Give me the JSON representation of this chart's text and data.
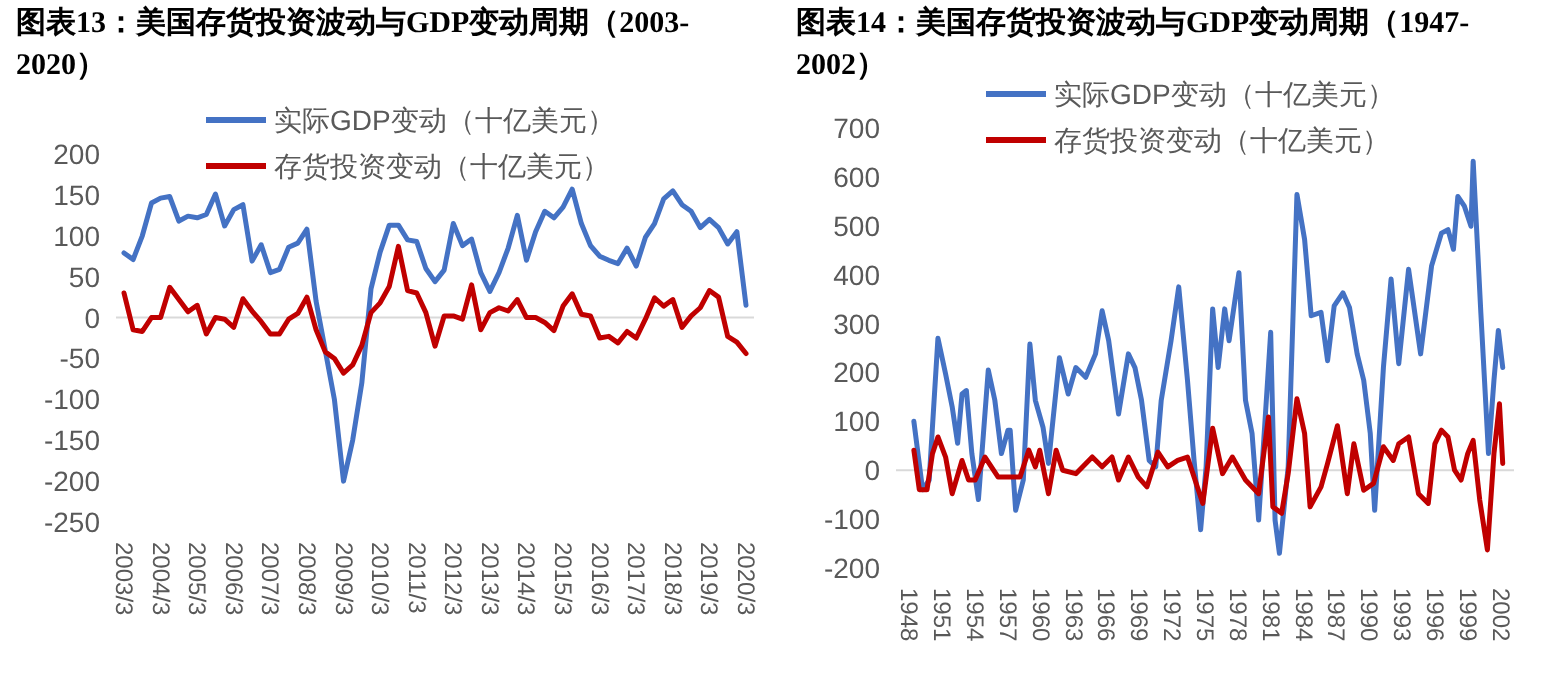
{
  "chart_data": [
    {
      "type": "line",
      "title": "图表13：美国存货投资波动与GDP变动周期（2003-2020）",
      "legend": "top",
      "ylim": [
        -250,
        200
      ],
      "yticks": [
        -250,
        -200,
        -150,
        -100,
        -50,
        0,
        50,
        100,
        150,
        200
      ],
      "categories": [
        "2003/3",
        null,
        null,
        null,
        "2004/3",
        null,
        null,
        null,
        "2005/3",
        null,
        null,
        null,
        "2006/3",
        null,
        null,
        null,
        "2007/3",
        null,
        null,
        null,
        "2008/3",
        null,
        null,
        null,
        "2009/3",
        null,
        null,
        null,
        "2010/3",
        null,
        null,
        null,
        "2011/3",
        null,
        null,
        null,
        "2012/3",
        null,
        null,
        null,
        "2013/3",
        null,
        null,
        null,
        "2014/3",
        null,
        null,
        null,
        "2015/3",
        null,
        null,
        null,
        "2016/3",
        null,
        null,
        null,
        "2017/3",
        null,
        null,
        null,
        "2018/3",
        null,
        null,
        null,
        "2019/3",
        null,
        null,
        null,
        "2020/3"
      ],
      "series": [
        {
          "name": "实际GDP变动（十亿美元）",
          "color": "#4472c4",
          "values": [
            79,
            71,
            100,
            140,
            146,
            148,
            118,
            124,
            122,
            126,
            151,
            112,
            132,
            138,
            69,
            89,
            55,
            59,
            86,
            91,
            108,
            20,
            -40,
            -100,
            -200,
            -150,
            -80,
            35,
            80,
            113,
            113,
            95,
            93,
            60,
            44,
            58,
            115,
            88,
            96,
            55,
            32,
            55,
            85,
            125,
            70,
            105,
            130,
            122,
            135,
            157,
            115,
            88,
            75,
            70,
            66,
            85,
            63,
            98,
            115,
            145,
            155,
            138,
            130,
            110,
            120,
            110,
            90,
            105,
            15
          ]
        },
        {
          "name": "存货投资变动（十亿美元）",
          "color": "#c00000",
          "values": [
            30,
            -15,
            -17,
            0,
            0,
            37,
            22,
            7,
            15,
            -20,
            0,
            -2,
            -12,
            23,
            8,
            -5,
            -20,
            -20,
            -2,
            5,
            25,
            -15,
            -42,
            -50,
            -68,
            -58,
            -34,
            6,
            18,
            38,
            87,
            33,
            30,
            6,
            -35,
            2,
            2,
            -2,
            40,
            -15,
            6,
            12,
            8,
            22,
            0,
            0,
            -6,
            -16,
            14,
            29,
            4,
            2,
            -25,
            -23,
            -31,
            -17,
            -25,
            -2,
            24,
            14,
            22,
            -12,
            2,
            12,
            33,
            25,
            -23,
            -30,
            -44
          ]
        }
      ]
    },
    {
      "type": "line",
      "title": "图表14：美国存货投资波动与GDP变动周期（1947-2002）",
      "legend": "top",
      "ylim": [
        -200,
        700
      ],
      "yticks": [
        -200,
        -100,
        0,
        100,
        200,
        300,
        400,
        500,
        600,
        700
      ],
      "xlim": [
        1947.5,
        2002.5
      ],
      "xticks": [
        1948,
        1951,
        1954,
        1957,
        1960,
        1963,
        1966,
        1969,
        1972,
        1975,
        1978,
        1981,
        1984,
        1987,
        1990,
        1993,
        1996,
        1999,
        2002
      ],
      "series": [
        {
          "name": "实际GDP变动（十亿美元）",
          "color": "#4472c4",
          "x": [
            1948.4,
            1949.2,
            1949.8,
            1950.6,
            1951.3,
            1951.9,
            1952.4,
            1952.8,
            1953.2,
            1953.7,
            1954.3,
            1955.2,
            1955.8,
            1956.4,
            1957.0,
            1957.2,
            1957.7,
            1958.4,
            1959.0,
            1959.5,
            1960.2,
            1960.7,
            1961.7,
            1962.5,
            1963.2,
            1964.1,
            1965.0,
            1965.6,
            1966.2,
            1967.1,
            1968.0,
            1968.6,
            1969.2,
            1969.9,
            1970.5,
            1971.0,
            1971.9,
            1972.6,
            1973.4,
            1974.0,
            1974.6,
            1975.1,
            1975.7,
            1976.2,
            1976.8,
            1977.2,
            1978.1,
            1978.7,
            1979.3,
            1979.9,
            1981.0,
            1981.4,
            1981.8,
            1982.6,
            1983.4,
            1984.1,
            1984.7,
            1985.6,
            1986.2,
            1986.8,
            1987.6,
            1988.2,
            1988.9,
            1989.5,
            1990.1,
            1990.5,
            1991.3,
            1992.0,
            1992.7,
            1993.6,
            1994.7,
            1995.7,
            1996.6,
            1997.2,
            1997.7,
            1998.1,
            1998.7,
            1999.3,
            1999.5,
            2000.2,
            2000.9,
            2001.4,
            2001.8,
            2002.2
          ],
          "values": [
            100,
            -40,
            -20,
            270,
            197,
            130,
            55,
            156,
            163,
            34,
            -60,
            205,
            143,
            34,
            82,
            82,
            -82,
            -20,
            258,
            143,
            88,
            14,
            230,
            156,
            210,
            190,
            238,
            326,
            265,
            115,
            238,
            210,
            143,
            20,
            7,
            143,
            265,
            375,
            184,
            20,
            -122,
            7,
            330,
            210,
            330,
            265,
            404,
            143,
            75,
            -102,
            282,
            -102,
            -170,
            7,
            564,
            472,
            316,
            323,
            224,
            336,
            363,
            333,
            238,
            184,
            75,
            -82,
            210,
            391,
            218,
            411,
            238,
            418,
            485,
            492,
            452,
            560,
            540,
            499,
            632,
            323,
            34,
            184,
            286,
            210
          ]
        },
        {
          "name": "存货投资变动（十亿美元）",
          "color": "#c00000",
          "x": [
            1948.4,
            1948.9,
            1949.6,
            1950.1,
            1950.6,
            1951.3,
            1951.9,
            1952.8,
            1953.4,
            1954.0,
            1954.9,
            1956.1,
            1957.2,
            1958.1,
            1958.9,
            1959.5,
            1959.9,
            1960.7,
            1961.4,
            1962.0,
            1963.2,
            1964.7,
            1965.6,
            1966.5,
            1967.1,
            1968.0,
            1968.9,
            1969.7,
            1970.7,
            1971.6,
            1972.5,
            1973.4,
            1974.0,
            1974.8,
            1975.7,
            1976.6,
            1977.5,
            1978.7,
            1979.9,
            1980.8,
            1981.2,
            1982.0,
            1982.6,
            1983.4,
            1984.1,
            1984.6,
            1985.6,
            1986.2,
            1987.1,
            1988.0,
            1988.6,
            1989.5,
            1990.4,
            1991.3,
            1992.2,
            1992.7,
            1993.6,
            1994.5,
            1995.4,
            1996.0,
            1996.6,
            1997.2,
            1997.8,
            1998.4,
            1999.0,
            1999.5,
            2000.1,
            2000.8,
            2001.4,
            2001.9,
            2002.2
          ],
          "values": [
            41,
            -40,
            -40,
            34,
            68,
            27,
            -48,
            20,
            -20,
            -20,
            27,
            -14,
            -14,
            -14,
            41,
            7,
            41,
            -48,
            41,
            0,
            -7,
            27,
            7,
            27,
            -20,
            27,
            -14,
            -34,
            37,
            7,
            20,
            27,
            -14,
            -68,
            86,
            -7,
            27,
            -20,
            -48,
            109,
            -75,
            -88,
            -7,
            146,
            75,
            -75,
            -34,
            14,
            91,
            -48,
            54,
            -41,
            -27,
            48,
            20,
            54,
            68,
            -48,
            -68,
            54,
            82,
            68,
            0,
            -20,
            34,
            61,
            -61,
            -163,
            34,
            136,
            14
          ]
        }
      ]
    }
  ]
}
